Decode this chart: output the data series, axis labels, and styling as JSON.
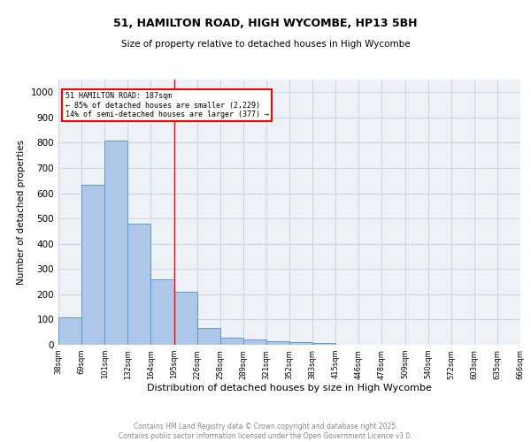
{
  "title1": "51, HAMILTON ROAD, HIGH WYCOMBE, HP13 5BH",
  "title2": "Size of property relative to detached houses in High Wycombe",
  "xlabel": "Distribution of detached houses by size in High Wycombe",
  "ylabel": "Number of detached properties",
  "bar_values": [
    110,
    635,
    810,
    480,
    260,
    210,
    65,
    28,
    20,
    15,
    10,
    8,
    0,
    0,
    0,
    0,
    0,
    0,
    0,
    0
  ],
  "bin_labels": [
    "38sqm",
    "69sqm",
    "101sqm",
    "132sqm",
    "164sqm",
    "195sqm",
    "226sqm",
    "258sqm",
    "289sqm",
    "321sqm",
    "352sqm",
    "383sqm",
    "415sqm",
    "446sqm",
    "478sqm",
    "509sqm",
    "540sqm",
    "572sqm",
    "603sqm",
    "635sqm",
    "666sqm"
  ],
  "bar_color": "#aec6e8",
  "bar_edge_color": "#5b9bd5",
  "grid_color": "#c8d8e8",
  "background_color": "#eef2f7",
  "red_line_x": 5.0,
  "annotation_title": "51 HAMILTON ROAD: 187sqm",
  "annotation_line1": "← 85% of detached houses are smaller (2,229)",
  "annotation_line2": "14% of semi-detached houses are larger (377) →",
  "ylim": [
    0,
    1050
  ],
  "yticks": [
    0,
    100,
    200,
    300,
    400,
    500,
    600,
    700,
    800,
    900,
    1000
  ],
  "footer1": "Contains HM Land Registry data © Crown copyright and database right 2025.",
  "footer2": "Contains public sector information licensed under the Open Government Licence v3.0."
}
